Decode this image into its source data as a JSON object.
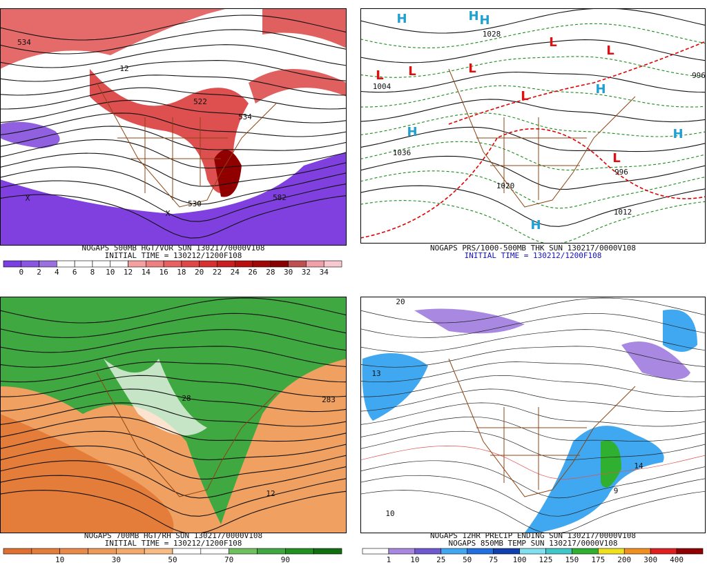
{
  "panels": [
    {
      "caption": [
        "NOGAPS 500MB HGT/VOR SUN 130217/0000V108",
        "INITIAL TIME = 130212/1200F108"
      ],
      "colorbar": {
        "labels": [
          0,
          2,
          4,
          6,
          8,
          10,
          12,
          14,
          16,
          18,
          20,
          22,
          24,
          26,
          28,
          30,
          32,
          34
        ],
        "colors": [
          "#7a3fe0",
          "#8a55e0",
          "#9a70e0",
          "#ffffff",
          "#ffffff",
          "#ffffff",
          "#ffffff",
          "#f4a0a0",
          "#ee8080",
          "#e86060",
          "#e04848",
          "#d83030",
          "#c82020",
          "#b81010",
          "#a00808",
          "#880000",
          "#c05050",
          "#f0a0a8",
          "#f8c8d0"
        ]
      },
      "map_labels": [
        "534",
        "12",
        "522",
        "534",
        "582",
        "530",
        "X",
        "X"
      ]
    },
    {
      "caption": [
        "NOGAPS PRS/1000-500MB THK SUN 130217/0000V108",
        "INITIAL TIME = 130212/1200F108"
      ],
      "map_labels": [
        "L",
        "L",
        "L",
        "L",
        "L",
        "L",
        "L",
        "H",
        "H",
        "H",
        "H",
        "H",
        "H",
        "H",
        "1004",
        "1036",
        "1020",
        "996",
        "1012",
        "1028",
        "996"
      ]
    },
    {
      "caption": [
        "NOGAPS 700MB HGT/RH SUN 130217/0000V108",
        "INITIAL TIME = 130212/1200F108"
      ],
      "colorbar": {
        "labels": [
          10,
          30,
          50,
          70,
          90
        ],
        "colors": [
          "#e07030",
          "#e47c3a",
          "#e98a48",
          "#ee9a58",
          "#f3aa6a",
          "#f8bc84",
          "#ffffff",
          "#ffffff",
          "#70c060",
          "#40a840",
          "#209020",
          "#107010"
        ]
      },
      "map_labels": [
        "283",
        "12",
        "28"
      ]
    },
    {
      "caption": [
        "NOGAPS 12HR PRECIP ENDING SUN 130217/0000V108",
        "NOGAPS 850MB TEMP SUN 130217/0000V108"
      ],
      "colorbar": {
        "labels": [
          1,
          10,
          25,
          50,
          75,
          100,
          125,
          150,
          175,
          200,
          300,
          400
        ],
        "colors": [
          "#ffffff",
          "#a888e0",
          "#7058d0",
          "#40a8f0",
          "#2070e0",
          "#1040b0",
          "#80e0f0",
          "#40c8c8",
          "#30b030",
          "#f0e020",
          "#f09020",
          "#e02020",
          "#900000"
        ]
      },
      "map_labels": [
        "20",
        "13",
        "14",
        "10",
        "9"
      ]
    }
  ]
}
